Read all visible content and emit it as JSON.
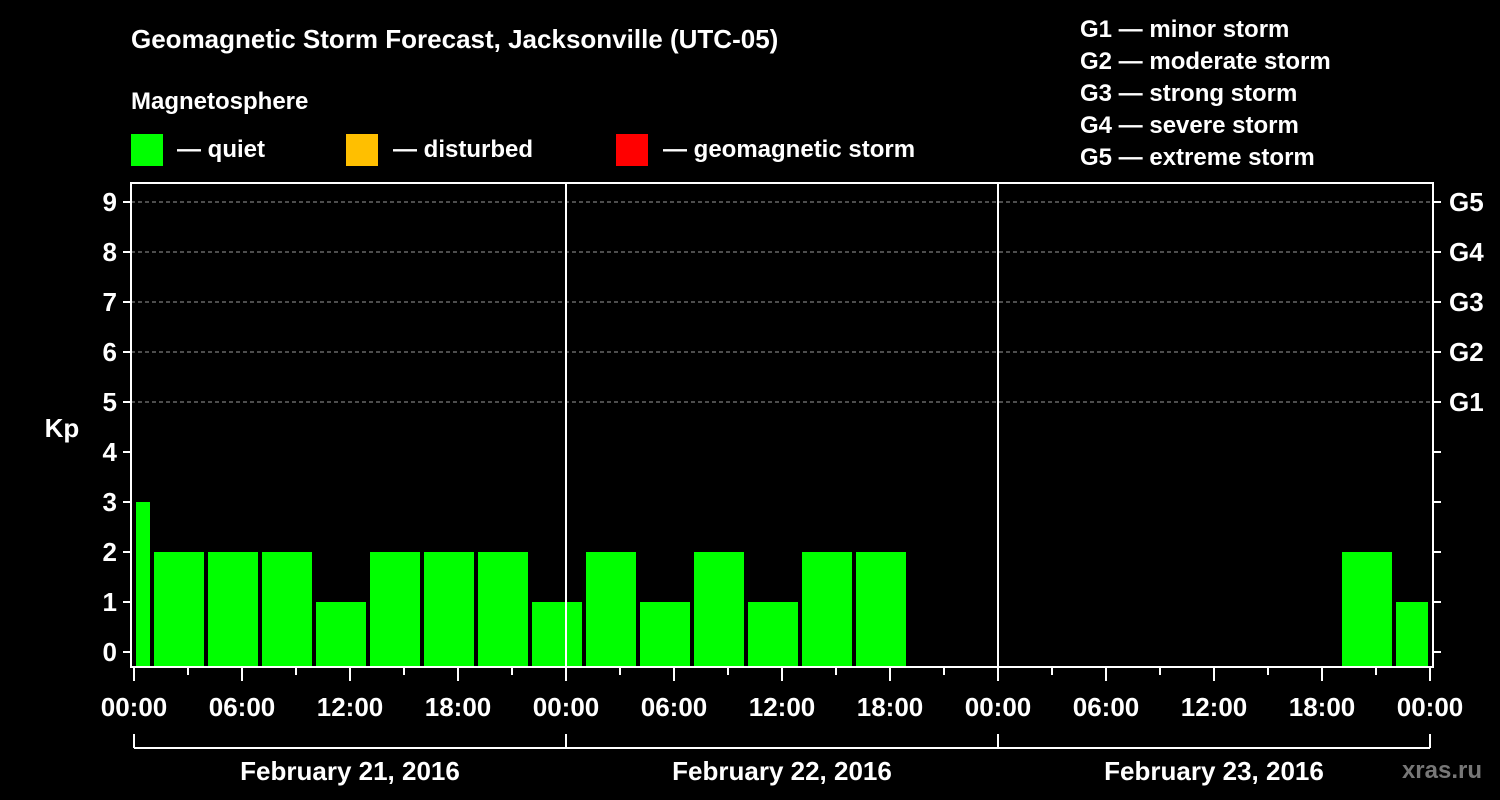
{
  "title": "Geomagnetic Storm Forecast, Jacksonville (UTC-05)",
  "legend": {
    "heading": "Magnetosphere",
    "items": [
      {
        "label": "— quiet",
        "color": "#00ff00"
      },
      {
        "label": "— disturbed",
        "color": "#ffbf00"
      },
      {
        "label": "— geomagnetic storm",
        "color": "#ff0000"
      }
    ]
  },
  "g_scale": [
    "G1 — minor storm",
    "G2 — moderate storm",
    "G3 — strong storm",
    "G4 — severe storm",
    "G5 — extreme storm"
  ],
  "watermark": "xras.ru",
  "chart_data": {
    "type": "bar",
    "title": "Geomagnetic Storm Forecast, Jacksonville (UTC-05)",
    "ylabel": "Kp",
    "ylim": [
      0,
      9
    ],
    "yticks": [
      "0",
      "1",
      "2",
      "3",
      "4",
      "5",
      "6",
      "7",
      "8",
      "9"
    ],
    "right_ticks": [
      {
        "kp": 5,
        "label": "G1"
      },
      {
        "kp": 6,
        "label": "G2"
      },
      {
        "kp": 7,
        "label": "G3"
      },
      {
        "kp": 8,
        "label": "G4"
      },
      {
        "kp": 9,
        "label": "G5"
      }
    ],
    "xlim_hours": [
      0,
      72
    ],
    "xticks": [
      {
        "hour": 0,
        "label": "00:00"
      },
      {
        "hour": 6,
        "label": "06:00"
      },
      {
        "hour": 12,
        "label": "12:00"
      },
      {
        "hour": 18,
        "label": "18:00"
      },
      {
        "hour": 24,
        "label": "00:00"
      },
      {
        "hour": 30,
        "label": "06:00"
      },
      {
        "hour": 36,
        "label": "12:00"
      },
      {
        "hour": 42,
        "label": "18:00"
      },
      {
        "hour": 48,
        "label": "00:00"
      },
      {
        "hour": 54,
        "label": "06:00"
      },
      {
        "hour": 60,
        "label": "12:00"
      },
      {
        "hour": 66,
        "label": "18:00"
      },
      {
        "hour": 72,
        "label": "00:00"
      }
    ],
    "days": [
      "February 21, 2016",
      "February 22, 2016",
      "February 23, 2016"
    ],
    "grid": "dashed at each Kp level from 5 to 9",
    "series": [
      {
        "status": "quiet",
        "color": "#00ff00",
        "bars": [
          {
            "start": 0,
            "end": 1,
            "kp": 3
          },
          {
            "start": 1,
            "end": 4,
            "kp": 2
          },
          {
            "start": 4,
            "end": 7,
            "kp": 2
          },
          {
            "start": 7,
            "end": 10,
            "kp": 2
          },
          {
            "start": 10,
            "end": 13,
            "kp": 1
          },
          {
            "start": 13,
            "end": 16,
            "kp": 2
          },
          {
            "start": 16,
            "end": 19,
            "kp": 2
          },
          {
            "start": 19,
            "end": 22,
            "kp": 2
          },
          {
            "start": 22,
            "end": 25,
            "kp": 1
          },
          {
            "start": 25,
            "end": 28,
            "kp": 2
          },
          {
            "start": 28,
            "end": 31,
            "kp": 1
          },
          {
            "start": 31,
            "end": 34,
            "kp": 2
          },
          {
            "start": 34,
            "end": 37,
            "kp": 1
          },
          {
            "start": 37,
            "end": 40,
            "kp": 2
          },
          {
            "start": 40,
            "end": 43,
            "kp": 2
          },
          {
            "start": 67,
            "end": 70,
            "kp": 2
          },
          {
            "start": 70,
            "end": 72,
            "kp": 1
          }
        ]
      }
    ]
  }
}
